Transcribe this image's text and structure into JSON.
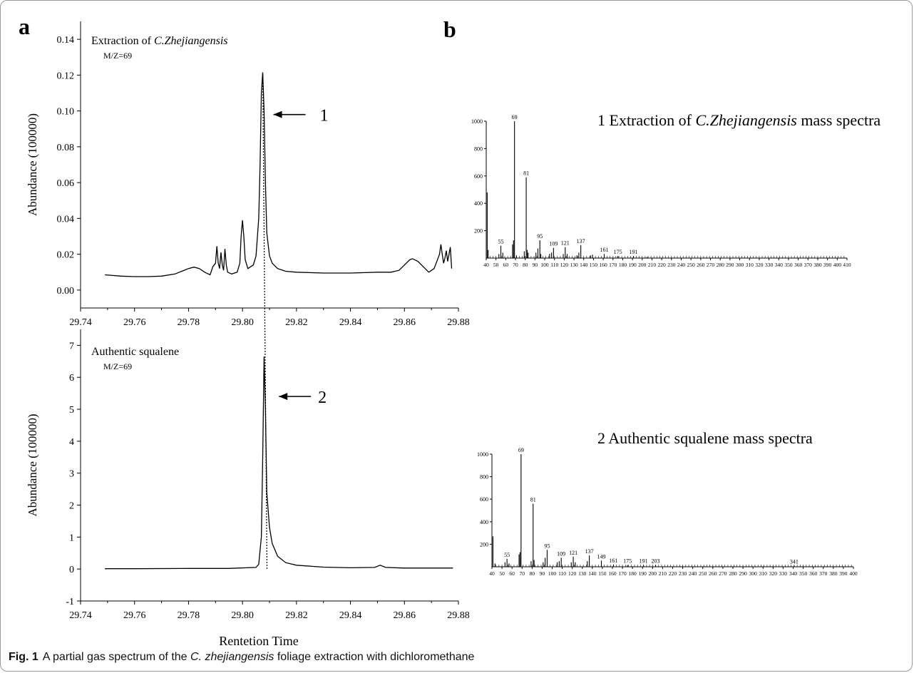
{
  "caption": {
    "label": "Fig. 1",
    "text_before": "A partial gas spectrum of the ",
    "text_italic": "C. zhejiangensis",
    "text_after": " foliage extraction with dichloromethane"
  },
  "panels": {
    "a": "a",
    "b": "b"
  },
  "chart_data": [
    {
      "type": "line",
      "panel": "a",
      "title_prefix": "Extraction of ",
      "title_italic": "C.Zhejiangensis",
      "subtitle": "M/Z=69",
      "ylabel": "Abundance (100000)",
      "xlabel": "",
      "xlim": [
        29.74,
        29.88
      ],
      "ylim": [
        -0.01,
        0.15
      ],
      "xticks": [
        "29.74",
        "29.76",
        "29.78",
        "29.80",
        "29.82",
        "29.84",
        "29.86",
        "29.88"
      ],
      "yticks": [
        "0.00",
        "0.02",
        "0.04",
        "0.06",
        "0.08",
        "0.10",
        "0.12",
        "0.14"
      ],
      "peak_label": "1",
      "peak_x": 29.8075,
      "series": [
        {
          "x": [
            29.749,
            29.755,
            29.76,
            29.765,
            29.77,
            29.775,
            29.78,
            29.782,
            29.784,
            29.786,
            29.788,
            29.789,
            29.79,
            29.7905,
            29.791,
            29.7915,
            29.792,
            29.7925,
            29.793,
            29.7935,
            29.794,
            29.7945,
            29.796,
            29.798,
            29.799,
            29.7995,
            29.8,
            29.8005,
            29.801,
            29.802,
            29.804,
            29.805,
            29.806,
            29.8065,
            29.807,
            29.8075,
            29.808,
            29.8085,
            29.809,
            29.81,
            29.811,
            29.813,
            29.816,
            29.82,
            29.83,
            29.84,
            29.85,
            29.855,
            29.858,
            29.86,
            29.862,
            29.863,
            29.865,
            29.867,
            29.869,
            29.871,
            29.872,
            29.873,
            29.8735,
            29.874,
            29.8745,
            29.875,
            29.8755,
            29.876,
            29.8765,
            29.877,
            29.8775
          ],
          "y": [
            0.0085,
            0.0078,
            0.0075,
            0.0075,
            0.0078,
            0.009,
            0.012,
            0.0128,
            0.012,
            0.01,
            0.0085,
            0.013,
            0.015,
            0.0245,
            0.015,
            0.012,
            0.021,
            0.014,
            0.011,
            0.023,
            0.014,
            0.01,
            0.009,
            0.01,
            0.015,
            0.03,
            0.039,
            0.03,
            0.017,
            0.012,
            0.014,
            0.019,
            0.04,
            0.07,
            0.11,
            0.1215,
            0.1,
            0.06,
            0.032,
            0.019,
            0.015,
            0.012,
            0.0105,
            0.01,
            0.0095,
            0.0095,
            0.01,
            0.01,
            0.011,
            0.014,
            0.017,
            0.0175,
            0.016,
            0.013,
            0.01,
            0.012,
            0.016,
            0.02,
            0.0255,
            0.02,
            0.015,
            0.018,
            0.022,
            0.016,
            0.02,
            0.024,
            0.012
          ]
        }
      ]
    },
    {
      "type": "line",
      "panel": "a",
      "title": "Authentic squalene",
      "subtitle": "M/Z=69",
      "ylabel": "Abundance (100000)",
      "xlabel": "Rentetion Time",
      "xlim": [
        29.74,
        29.88
      ],
      "ylim": [
        -1,
        7.5
      ],
      "xticks": [
        "29.74",
        "29.76",
        "29.78",
        "29.80",
        "29.82",
        "29.84",
        "29.86",
        "29.88"
      ],
      "yticks": [
        "-1",
        "0",
        "1",
        "2",
        "3",
        "4",
        "5",
        "6",
        "7"
      ],
      "peak_label": "2",
      "peak_x": 29.8082,
      "series": [
        {
          "x": [
            29.749,
            29.76,
            29.78,
            29.795,
            29.805,
            29.806,
            29.807,
            29.8075,
            29.808,
            29.8085,
            29.809,
            29.81,
            29.811,
            29.813,
            29.816,
            29.82,
            29.83,
            29.84,
            29.849,
            29.851,
            29.853,
            29.86,
            29.87,
            29.878
          ],
          "y": [
            0.01,
            0.01,
            0.02,
            0.02,
            0.05,
            0.15,
            1.0,
            3.5,
            6.65,
            5.0,
            2.4,
            1.3,
            0.8,
            0.4,
            0.2,
            0.12,
            0.06,
            0.04,
            0.05,
            0.12,
            0.05,
            0.03,
            0.03,
            0.03
          ]
        }
      ]
    },
    {
      "type": "bar",
      "panel": "b",
      "title_prefix": "1  Extraction of ",
      "title_italic": "C.Zhejiangensis",
      "title_suffix": " mass spectra",
      "xlim": [
        40,
        410
      ],
      "ylim": [
        0,
        1000
      ],
      "yticks": [
        "200",
        "400",
        "600",
        "800",
        "1000"
      ],
      "xticks": [
        "40",
        "50",
        "60",
        "70",
        "80",
        "90",
        "100",
        "110",
        "120",
        "130",
        "140",
        "150",
        "160",
        "170",
        "180",
        "190",
        "200",
        "210",
        "220",
        "230",
        "240",
        "250",
        "260",
        "270",
        "280",
        "290",
        "300",
        "310",
        "320",
        "330",
        "340",
        "350",
        "360",
        "370",
        "380",
        "390",
        "400",
        "410"
      ],
      "peaks": [
        {
          "mz": 41,
          "v": 480
        },
        {
          "mz": 42,
          "v": 60
        },
        {
          "mz": 53,
          "v": 30
        },
        {
          "mz": 55,
          "v": 90,
          "label": "55"
        },
        {
          "mz": 57,
          "v": 40
        },
        {
          "mz": 67,
          "v": 100
        },
        {
          "mz": 68,
          "v": 130
        },
        {
          "mz": 69,
          "v": 1000,
          "label": "69"
        },
        {
          "mz": 71,
          "v": 20
        },
        {
          "mz": 79,
          "v": 50
        },
        {
          "mz": 81,
          "v": 590,
          "label": "81"
        },
        {
          "mz": 82,
          "v": 60
        },
        {
          "mz": 83,
          "v": 40
        },
        {
          "mz": 91,
          "v": 40
        },
        {
          "mz": 93,
          "v": 70
        },
        {
          "mz": 95,
          "v": 130,
          "label": "95"
        },
        {
          "mz": 96,
          "v": 30
        },
        {
          "mz": 105,
          "v": 30
        },
        {
          "mz": 107,
          "v": 40
        },
        {
          "mz": 109,
          "v": 75,
          "label": "109"
        },
        {
          "mz": 119,
          "v": 30
        },
        {
          "mz": 121,
          "v": 80,
          "label": "121"
        },
        {
          "mz": 123,
          "v": 30
        },
        {
          "mz": 133,
          "v": 20
        },
        {
          "mz": 135,
          "v": 40
        },
        {
          "mz": 137,
          "v": 95,
          "label": "137"
        },
        {
          "mz": 147,
          "v": 20
        },
        {
          "mz": 149,
          "v": 25
        },
        {
          "mz": 161,
          "v": 30,
          "label": "161"
        },
        {
          "mz": 175,
          "v": 15,
          "label": "175"
        },
        {
          "mz": 191,
          "v": 15,
          "label": "191"
        },
        {
          "mz": 205,
          "v": 8
        }
      ]
    },
    {
      "type": "bar",
      "panel": "b",
      "title": "2  Authentic squalene mass spectra",
      "xlim": [
        40,
        400
      ],
      "ylim": [
        0,
        1000
      ],
      "yticks": [
        "200",
        "400",
        "600",
        "800",
        "1000"
      ],
      "xticks": [
        "40",
        "50",
        "60",
        "70",
        "80",
        "90",
        "100",
        "110",
        "120",
        "130",
        "140",
        "150",
        "160",
        "170",
        "180",
        "190",
        "200",
        "210",
        "220",
        "230",
        "240",
        "250",
        "260",
        "270",
        "280",
        "290",
        "300",
        "310",
        "320",
        "330",
        "340",
        "350",
        "360",
        "370",
        "380",
        "390",
        "400"
      ],
      "peaks": [
        {
          "mz": 41,
          "v": 270
        },
        {
          "mz": 43,
          "v": 30
        },
        {
          "mz": 53,
          "v": 40
        },
        {
          "mz": 55,
          "v": 70,
          "label": "55"
        },
        {
          "mz": 57,
          "v": 30
        },
        {
          "mz": 67,
          "v": 110
        },
        {
          "mz": 68,
          "v": 130
        },
        {
          "mz": 69,
          "v": 1000,
          "label": "69"
        },
        {
          "mz": 79,
          "v": 50
        },
        {
          "mz": 81,
          "v": 560,
          "label": "81"
        },
        {
          "mz": 82,
          "v": 60
        },
        {
          "mz": 91,
          "v": 40
        },
        {
          "mz": 93,
          "v": 80
        },
        {
          "mz": 95,
          "v": 150,
          "label": "95"
        },
        {
          "mz": 105,
          "v": 40
        },
        {
          "mz": 107,
          "v": 50
        },
        {
          "mz": 109,
          "v": 80,
          "label": "109"
        },
        {
          "mz": 119,
          "v": 40
        },
        {
          "mz": 121,
          "v": 90,
          "label": "121"
        },
        {
          "mz": 123,
          "v": 40
        },
        {
          "mz": 135,
          "v": 50
        },
        {
          "mz": 137,
          "v": 100,
          "label": "137"
        },
        {
          "mz": 149,
          "v": 55,
          "label": "149"
        },
        {
          "mz": 161,
          "v": 20,
          "label": "161"
        },
        {
          "mz": 175,
          "v": 15,
          "label": "175"
        },
        {
          "mz": 191,
          "v": 15,
          "label": "191"
        },
        {
          "mz": 203,
          "v": 15,
          "label": "203"
        },
        {
          "mz": 341,
          "v": 10,
          "label": "341"
        }
      ]
    }
  ]
}
